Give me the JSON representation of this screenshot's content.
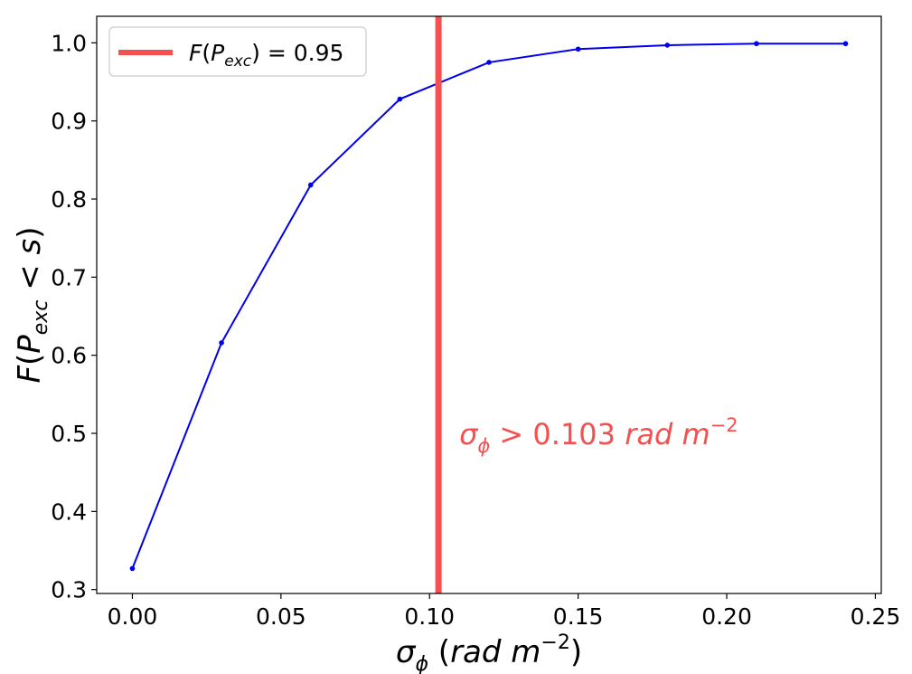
{
  "chart_data": {
    "type": "line",
    "x": [
      0.0,
      0.03,
      0.06,
      0.09,
      0.12,
      0.15,
      0.18,
      0.21,
      0.24
    ],
    "series": [
      {
        "values": [
          0.327,
          0.616,
          0.818,
          0.928,
          0.975,
          0.992,
          0.997,
          0.999,
          0.999
        ],
        "color": "#0000ee",
        "marker": "dot"
      }
    ],
    "xlim": [
      -0.012,
      0.252
    ],
    "ylim": [
      0.295,
      1.034
    ],
    "xticks": [
      0.0,
      0.05,
      0.1,
      0.15,
      0.2,
      0.25
    ],
    "xtick_labels": [
      "0.00",
      "0.05",
      "0.10",
      "0.15",
      "0.20",
      "0.25"
    ],
    "yticks": [
      0.3,
      0.4,
      0.5,
      0.6,
      0.7,
      0.8,
      0.9,
      1.0
    ],
    "ytick_labels": [
      "0.3",
      "0.4",
      "0.5",
      "0.6",
      "0.7",
      "0.8",
      "0.9",
      "1.0"
    ],
    "xlabel": {
      "symbol": "σ",
      "sub": "ϕ",
      "prefix": " (",
      "unit": "rad m",
      "sup": "−2",
      "suffix": ")"
    },
    "ylabel": {
      "f": "F",
      "open": "(",
      "p": "P",
      "sub": "exc",
      "rel": " < ",
      "s": "s",
      "close": ")"
    },
    "vline": {
      "x": 0.103,
      "color": "#f55050",
      "legend": {
        "f": "F",
        "open": "(",
        "p": "P",
        "sub": "exc",
        "close": ")",
        "eq": " = 0.95"
      }
    },
    "annotation": {
      "symbol": "σ",
      "sub": "ϕ",
      "rel": " > 0.103 ",
      "unit": "rad m",
      "sup": "−2",
      "x": 0.11,
      "y": 0.5,
      "color": "#f55050"
    },
    "legend_position": "top-left",
    "grid": false
  }
}
